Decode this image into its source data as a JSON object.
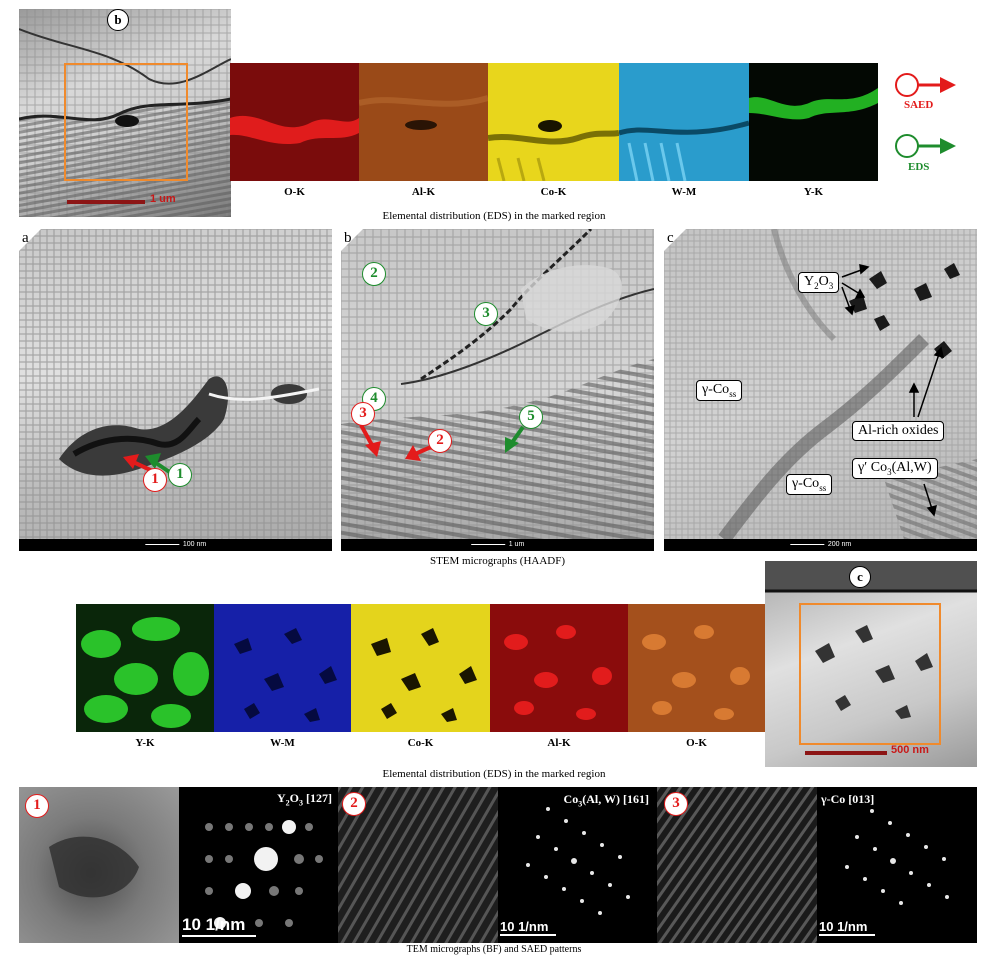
{
  "top_row": {
    "inset_label": "b",
    "inset_scale": "1 um",
    "maps": [
      {
        "label": "O-K",
        "color": "#b81414"
      },
      {
        "label": "Al-K",
        "color": "#a8521a"
      },
      {
        "label": "Co-K",
        "color": "#e2d31a"
      },
      {
        "label": "W-M",
        "color": "#2a9cc8"
      },
      {
        "label": "Y-K",
        "color": "#1c9a1c"
      }
    ],
    "legend": {
      "saed": "SAED",
      "eds": "EDS",
      "saed_color": "#e31b1b",
      "eds_color": "#1e8c2d"
    },
    "caption": "Elemental distribution (EDS) in the marked region"
  },
  "stem_row": {
    "panels": [
      {
        "letter": "a",
        "scale": "100 nm"
      },
      {
        "letter": "b",
        "scale": "1 um"
      },
      {
        "letter": "c",
        "scale": "200 nm"
      }
    ],
    "markers_a": {
      "red": "1",
      "green": "1"
    },
    "markers_b": {
      "green": [
        "2",
        "3",
        "4",
        "5"
      ],
      "red": [
        "3",
        "2"
      ]
    },
    "labels_c": {
      "y2o3_main": "Y",
      "y2o3_sub": "2",
      "y2o3_tail": "O",
      "y2o3_sub2": "3",
      "gamma1_main": "γ-Co",
      "gamma1_sub": "ss",
      "gamma2_main": "γ-Co",
      "gamma2_sub": "ss",
      "alrich": "Al-rich oxides",
      "gprime_main": "γ′ Co",
      "gprime_sub": "3",
      "gprime_tail": "(Al,W)"
    },
    "caption": "STEM micrographs (HAADF)"
  },
  "middle_row": {
    "maps": [
      {
        "label": "Y-K",
        "color": "#1f9a1f"
      },
      {
        "label": "W-M",
        "color": "#1420a8"
      },
      {
        "label": "Co-K",
        "color": "#e2d41a"
      },
      {
        "label": "Al-K",
        "color": "#b01414"
      },
      {
        "label": "O-K",
        "color": "#b0561c"
      }
    ],
    "inset_label": "c",
    "inset_scale": "500 nm",
    "caption": "Elemental distribution (EDS) in the marked region"
  },
  "bottom_row": {
    "markers": [
      "1",
      "2",
      "3"
    ],
    "saed": [
      {
        "title_main": "Y",
        "title_sub": "2",
        "title_mid": "O",
        "title_sub2": "3",
        "title_tail": " [127]",
        "scale": "10 1/nm"
      },
      {
        "title_main": "Co",
        "title_sub": "3",
        "title_tail": "(Al, W) [161]",
        "scale": "10 1/nm"
      },
      {
        "title_main": "γ-Co [013]",
        "scale": "10 1/nm"
      }
    ],
    "caption": "TEM micrographs (BF) and SAED patterns"
  }
}
